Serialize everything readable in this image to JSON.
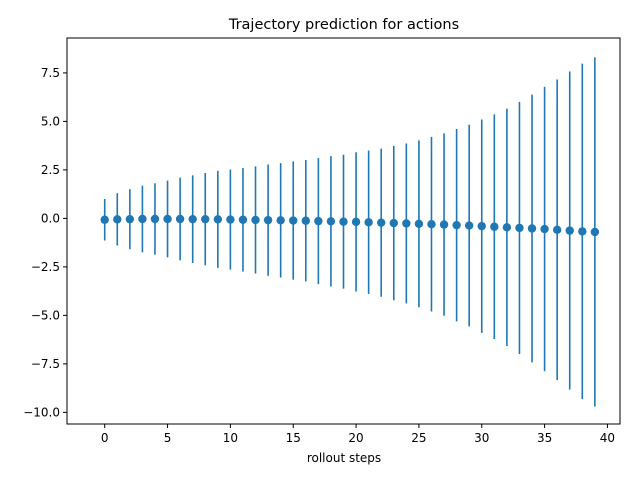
{
  "chart_data": {
    "type": "scatter",
    "subtype": "errorbar",
    "title": "Trajectory prediction for actions",
    "xlabel": "rollout steps",
    "ylabel": "",
    "xlim": [
      -3,
      41
    ],
    "ylim": [
      -10.6,
      9.3
    ],
    "xticks": [
      0,
      5,
      10,
      15,
      20,
      25,
      30,
      35,
      40
    ],
    "xtick_labels": [
      "0",
      "5",
      "10",
      "15",
      "20",
      "25",
      "30",
      "35",
      "40"
    ],
    "yticks": [
      -10.0,
      -7.5,
      -5.0,
      -2.5,
      0.0,
      2.5,
      5.0,
      7.5
    ],
    "ytick_labels": [
      "−10.0",
      "−7.5",
      "−5.0",
      "−2.5",
      "0.0",
      "2.5",
      "5.0",
      "7.5"
    ],
    "grid": false,
    "color": "#1f77b4",
    "series": [
      {
        "x": [
          0,
          1,
          2,
          3,
          4,
          5,
          6,
          7,
          8,
          9,
          10,
          11,
          12,
          13,
          14,
          15,
          16,
          17,
          18,
          19,
          20,
          21,
          22,
          23,
          24,
          25,
          26,
          27,
          28,
          29,
          30,
          31,
          32,
          33,
          34,
          35,
          36,
          37,
          38,
          39
        ],
        "y": [
          -0.07,
          -0.05,
          -0.04,
          -0.03,
          -0.03,
          -0.03,
          -0.03,
          -0.04,
          -0.04,
          -0.05,
          -0.06,
          -0.07,
          -0.08,
          -0.09,
          -0.1,
          -0.11,
          -0.12,
          -0.14,
          -0.15,
          -0.17,
          -0.18,
          -0.2,
          -0.22,
          -0.24,
          -0.26,
          -0.28,
          -0.3,
          -0.32,
          -0.35,
          -0.37,
          -0.4,
          -0.43,
          -0.46,
          -0.49,
          -0.52,
          -0.55,
          -0.59,
          -0.63,
          -0.67,
          -0.7
        ],
        "yerr": [
          1.07,
          1.35,
          1.55,
          1.72,
          1.84,
          1.98,
          2.13,
          2.26,
          2.38,
          2.5,
          2.58,
          2.67,
          2.76,
          2.87,
          2.95,
          3.05,
          3.13,
          3.25,
          3.36,
          3.45,
          3.59,
          3.7,
          3.82,
          3.98,
          4.12,
          4.3,
          4.5,
          4.7,
          4.96,
          5.2,
          5.5,
          5.79,
          6.12,
          6.5,
          6.9,
          7.33,
          7.75,
          8.2,
          8.65,
          9.0
        ]
      }
    ]
  }
}
